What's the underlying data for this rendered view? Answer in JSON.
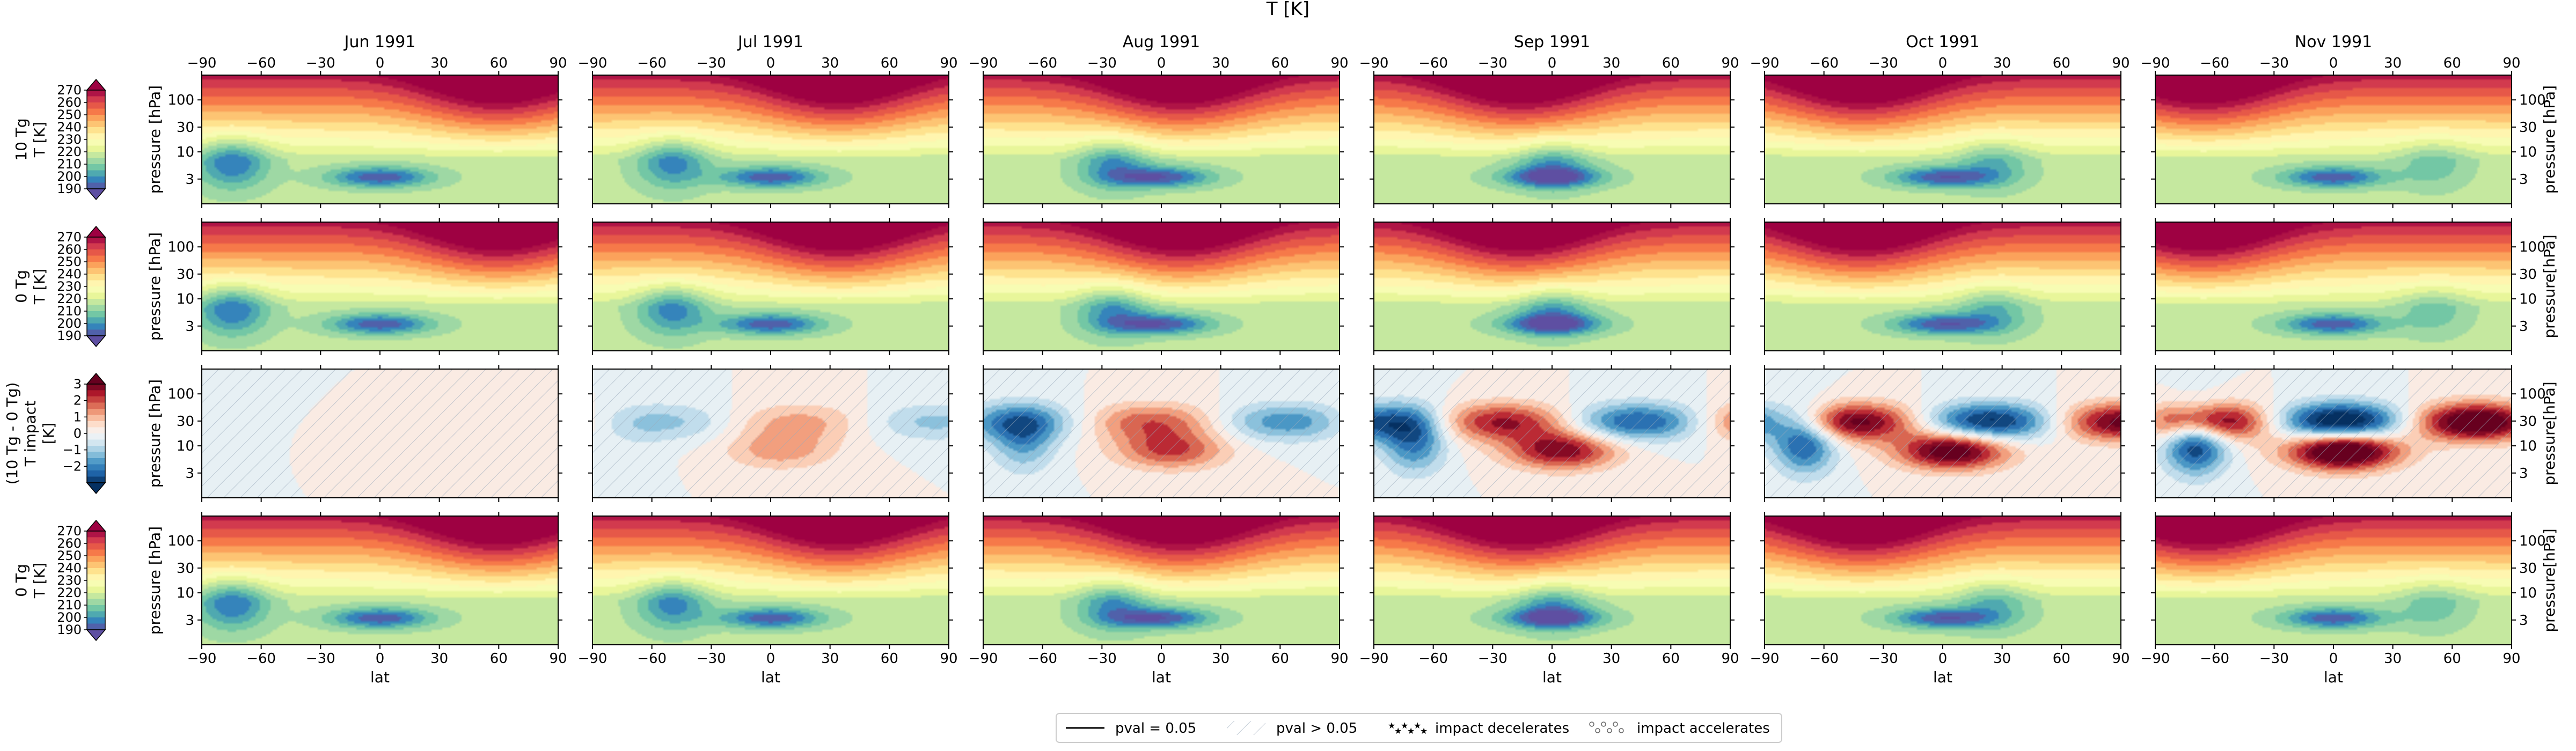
{
  "chart_data": {
    "type": "heatmap",
    "title": "T [K]",
    "months": [
      "Jun 1991",
      "Jul 1991",
      "Aug 1991",
      "Sep 1991",
      "Oct 1991",
      "Nov 1991"
    ],
    "rows": [
      {
        "label_lines": [
          "10 Tg",
          "T [K]"
        ],
        "kind": "abs",
        "ylabel_left": "pressure [hPa]",
        "ylabel_right": "pressure [hPa]"
      },
      {
        "label_lines": [
          "0 Tg",
          "T [K]"
        ],
        "kind": "abs",
        "ylabel_left": "pressure [hPa]",
        "ylabel_right": "pressure[hPa]"
      },
      {
        "label_lines": [
          "(10 Tg - 0 Tg)",
          "T impact",
          "[K]"
        ],
        "kind": "diff",
        "ylabel_left": "pressure [hPa]",
        "ylabel_right": "pressure[hPa]"
      },
      {
        "label_lines": [
          "0 Tg",
          "T [K]"
        ],
        "kind": "abs_sig",
        "ylabel_left": "pressure [hPa]",
        "ylabel_right": "pressure[hPa]"
      }
    ],
    "x": {
      "label": "lat",
      "range": [
        -90,
        90
      ],
      "ticks": [
        -90,
        -60,
        -30,
        0,
        30,
        60,
        90
      ],
      "tick_labels": [
        "−90",
        "−60",
        "−30",
        "0",
        "30",
        "60",
        "90"
      ]
    },
    "y": {
      "label": "pressure [hPa]",
      "scale": "log",
      "range": [
        300,
        1
      ],
      "ticks": [
        3,
        10,
        30,
        100
      ]
    },
    "colorbar_abs": {
      "ticks": [
        190,
        200,
        210,
        220,
        230,
        240,
        250,
        260,
        270
      ],
      "range": [
        190,
        270
      ],
      "extend": "both"
    },
    "colorbar_diff": {
      "ticks": [
        -2,
        -1,
        0,
        1,
        2,
        3
      ],
      "range": [
        -3,
        3
      ],
      "extend": "both"
    },
    "colormap": [
      "#5e4fa2",
      "#3288bd",
      "#66c2a5",
      "#abdda4",
      "#e6f598",
      "#ffffbf",
      "#fee08b",
      "#fdae61",
      "#f46d43",
      "#d53e4f",
      "#9e0142"
    ],
    "legend": {
      "placement": "bottom-center",
      "entries": [
        {
          "kind": "line",
          "label": "pval = 0.05"
        },
        {
          "kind": "hatch",
          "label": "pval > 0.05"
        },
        {
          "kind": "stars",
          "label": "impact decelerates"
        },
        {
          "kind": "circles",
          "label": "impact accelerates"
        }
      ]
    }
  }
}
